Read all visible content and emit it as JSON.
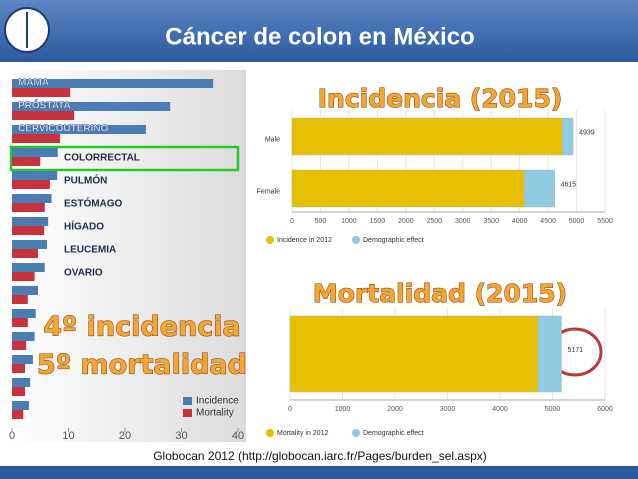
{
  "slide": {
    "title": "Cáncer de colon en México",
    "source": "Globocan 2012 (http://globocan.iarc.fr/Pages/burden_sel.aspx)"
  },
  "chart_data": [
    {
      "type": "bar",
      "orientation": "horizontal",
      "annotations": [
        "4º incidencia",
        "5º mortalidad"
      ],
      "categories": [
        "MAMA",
        "PRÓSTATA",
        "CERVICOUTERINO",
        "COLORRECTAL",
        "PULMÓN",
        "ESTÓMAGO",
        "HÍGADO",
        "LEUCEMIA",
        "OVARIO",
        null,
        null,
        null,
        null,
        null,
        null
      ],
      "series": [
        {
          "name": "Incidence",
          "color": "#4a7db3",
          "values": [
            35.6,
            28,
            23.7,
            8.1,
            8,
            7,
            6.4,
            6.2,
            5.8,
            4.6,
            4.2,
            4,
            3.7,
            3.2,
            3
          ]
        },
        {
          "name": "Mortality",
          "color": "#c8323c",
          "values": [
            10.3,
            11,
            8.5,
            5,
            6.7,
            5.8,
            5.7,
            4.6,
            4,
            2.8,
            2.8,
            2.5,
            2.3,
            2.3,
            2
          ]
        }
      ],
      "xlim": [
        0,
        40
      ],
      "xticks": [
        0,
        10,
        20,
        30,
        40
      ],
      "legend": "lower right"
    },
    {
      "type": "stacked_bar",
      "title": "Incidencia (2015)",
      "categories": [
        "Male",
        "Female"
      ],
      "series": [
        {
          "name": "Incidence in 2012",
          "color": "#e6bf00",
          "values": [
            4750,
            4080
          ]
        },
        {
          "name": "Demographic effect",
          "color": "#8fcbe2",
          "values": [
            189,
            535
          ]
        }
      ],
      "totals": [
        4939,
        4615
      ],
      "xlim": [
        0,
        5500
      ],
      "xticks": [
        0,
        500,
        1000,
        1500,
        2000,
        2500,
        3000,
        3500,
        4000,
        4500,
        5000,
        5500
      ],
      "grid": true
    },
    {
      "type": "stacked_bar",
      "title": "Mortalidad (2015)",
      "categories": [
        null
      ],
      "series": [
        {
          "name": "Mortality in 2012",
          "color": "#e6bf00",
          "values": [
            4724
          ]
        },
        {
          "name": "Demographic effect",
          "color": "#8fcbe2",
          "values": [
            447
          ]
        }
      ],
      "totals": [
        5171
      ],
      "xlim": [
        0,
        6000
      ],
      "xticks": [
        0,
        1000,
        2000,
        3000,
        4000,
        5000,
        6000
      ],
      "grid": true
    }
  ]
}
